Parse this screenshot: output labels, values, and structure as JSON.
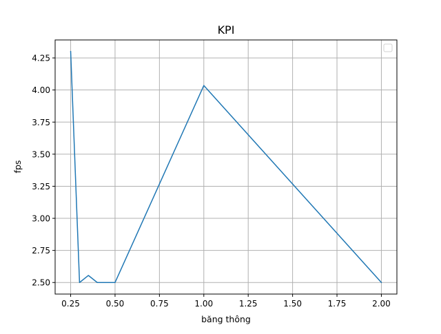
{
  "chart_data": {
    "type": "line",
    "title": "KPI",
    "xlabel": "băng thông",
    "ylabel": "fps",
    "xlim": [
      0.1625,
      2.0875
    ],
    "ylim": [
      2.41,
      4.39
    ],
    "xticks": [
      0.25,
      0.5,
      0.75,
      1.0,
      1.25,
      1.5,
      1.75,
      2.0
    ],
    "xtick_labels": [
      "0.25",
      "0.50",
      "0.75",
      "1.00",
      "1.25",
      "1.50",
      "1.75",
      "2.00"
    ],
    "yticks": [
      2.5,
      2.75,
      3.0,
      3.25,
      3.5,
      3.75,
      4.0,
      4.25
    ],
    "ytick_labels": [
      "2.50",
      "2.75",
      "3.00",
      "3.25",
      "3.50",
      "3.75",
      "4.00",
      "4.25"
    ],
    "grid": true,
    "legend": {
      "placement": "top-right",
      "entries": []
    },
    "series": [
      {
        "color": "#1f77b4",
        "x": [
          0.25,
          0.3,
          0.35,
          0.4,
          0.5,
          1.0,
          2.0
        ],
        "y": [
          4.3,
          2.5,
          2.555,
          2.5,
          2.5,
          4.035,
          2.5
        ]
      }
    ]
  }
}
